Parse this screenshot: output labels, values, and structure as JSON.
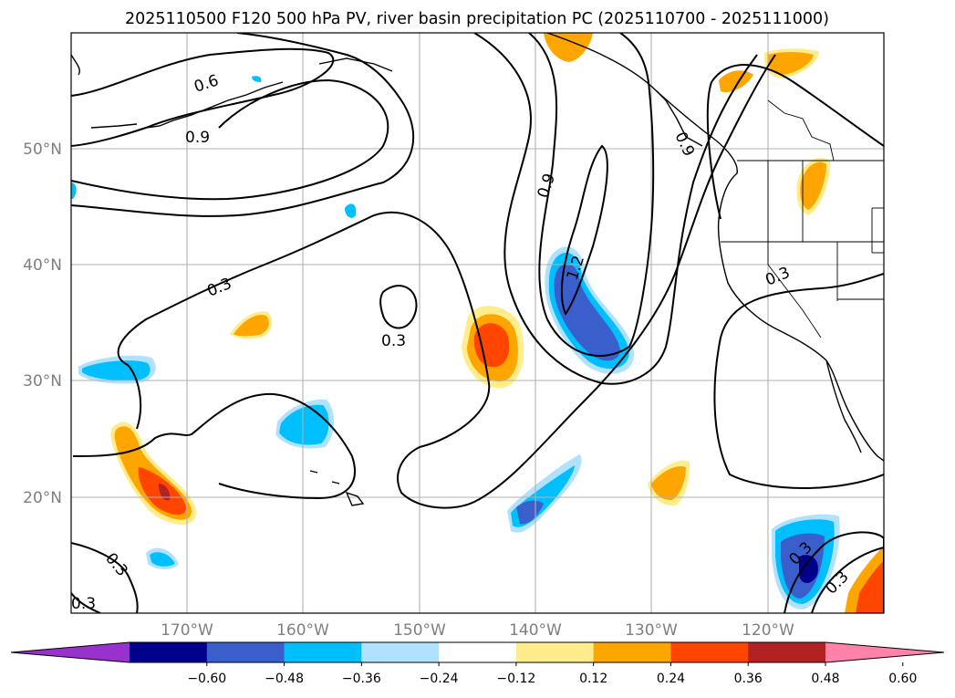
{
  "title": "2025110500 F120 500 hPa PV, river basin precipitation PC (2025110700 - 2025111000)",
  "map": {
    "lon_range": [
      -180,
      -110
    ],
    "lat_range": [
      10,
      60
    ],
    "lat_labels": [
      "50°N",
      "40°N",
      "30°N",
      "20°N"
    ],
    "lat_values": [
      50,
      40,
      30,
      20
    ],
    "lon_labels": [
      "170°W",
      "160°W",
      "150°W",
      "140°W",
      "130°W",
      "120°W"
    ],
    "lon_values": [
      -170,
      -160,
      -150,
      -140,
      -130,
      -120
    ],
    "contour_labels": [
      "0.6",
      "0.9",
      "0.3",
      "0.3",
      "0.9",
      "1.2",
      "0.3",
      "0.3",
      "0.3",
      "0.3",
      "0.3",
      "0.9"
    ]
  },
  "colorbar": {
    "colors": [
      "#9932cc",
      "#00008b",
      "#3a5fcd",
      "#00bfff",
      "#b0e2ff",
      "#ffffff",
      "#ffec8b",
      "#ffa500",
      "#ff4500",
      "#b22222",
      "#ff82ab"
    ],
    "tick_labels": [
      "−0.60",
      "−0.48",
      "−0.36",
      "−0.24",
      "−0.12",
      "0.12",
      "0.24",
      "0.36",
      "0.48",
      "0.60"
    ],
    "tick_values": [
      -0.6,
      -0.48,
      -0.36,
      -0.24,
      -0.12,
      0.12,
      0.24,
      0.36,
      0.48,
      0.6
    ]
  },
  "colors": {
    "frame": "#000000",
    "grid": "#b0b0b0",
    "coast": "#000000"
  }
}
